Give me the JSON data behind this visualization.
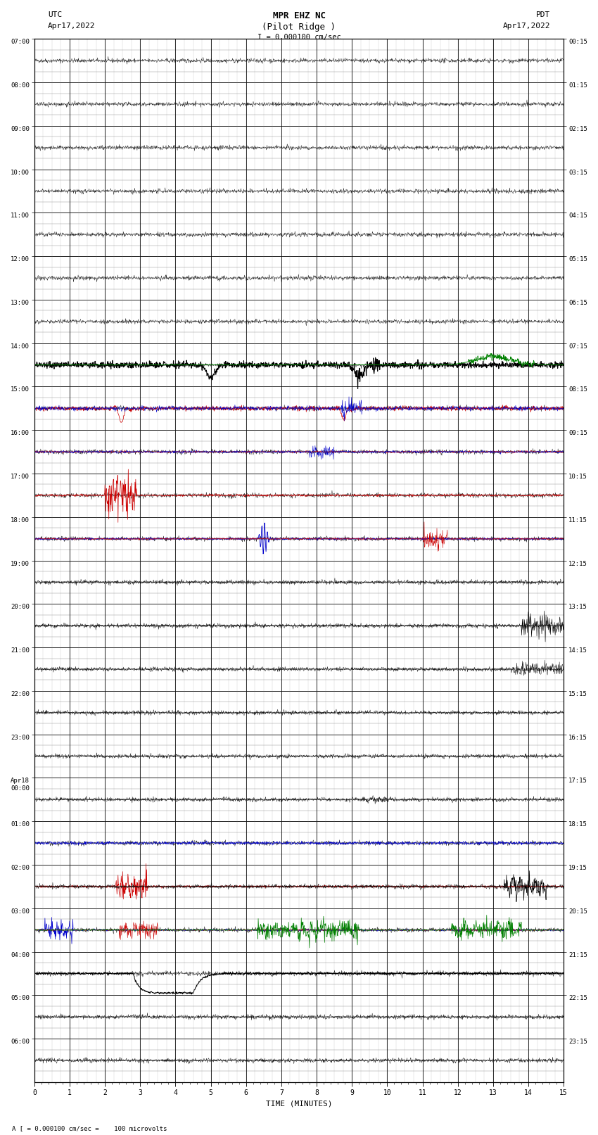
{
  "title_line1": "MPR EHZ NC",
  "title_line2": "(Pilot Ridge )",
  "title_line3": "I = 0.000100 cm/sec",
  "left_header1": "UTC",
  "left_header2": "Apr17,2022",
  "right_header1": "PDT",
  "right_header2": "Apr17,2022",
  "bottom_label": "TIME (MINUTES)",
  "scale_label": "A [ = 0.000100 cm/sec =    100 microvolts",
  "utc_times": [
    "07:00",
    "08:00",
    "09:00",
    "10:00",
    "11:00",
    "12:00",
    "13:00",
    "14:00",
    "15:00",
    "16:00",
    "17:00",
    "18:00",
    "19:00",
    "20:00",
    "21:00",
    "22:00",
    "23:00",
    "Apr18\n00:00",
    "01:00",
    "02:00",
    "03:00",
    "04:00",
    "05:00",
    "06:00"
  ],
  "pdt_times": [
    "00:15",
    "01:15",
    "02:15",
    "03:15",
    "04:15",
    "05:15",
    "06:15",
    "07:15",
    "08:15",
    "09:15",
    "10:15",
    "11:15",
    "12:15",
    "13:15",
    "14:15",
    "15:15",
    "16:15",
    "17:15",
    "18:15",
    "19:15",
    "20:15",
    "21:15",
    "22:15",
    "23:15"
  ],
  "n_rows": 24,
  "sub_rows": 4,
  "xmin": 0,
  "xmax": 15,
  "fig_width": 8.5,
  "fig_height": 16.13,
  "bg_color": "#ffffff",
  "major_grid_color": "#000000",
  "minor_grid_color": "#888888",
  "waveform_amp_scale": 0.25
}
